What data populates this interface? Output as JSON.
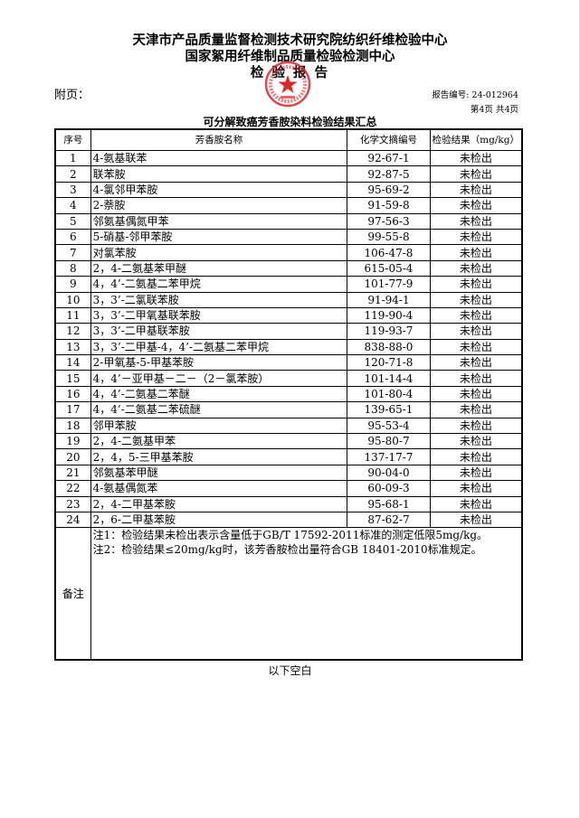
{
  "header": {
    "org_line1": "天津市产品质量监督检测技术研究院纺织纤维检验中心",
    "org_line2": "国家絮用纤维制品质量检验检测中心",
    "doc_title": "检 验 报 告",
    "attachment_label": "附页：",
    "report_no": "报告编号: 24-012964",
    "page_info": "第4页 共4页",
    "seal_color": "#e0242a"
  },
  "table": {
    "title": "可分解致癌芳香胺染料检验结果汇总",
    "columns": [
      "序号",
      "芳香胺名称",
      "化学文摘编号",
      "检验结果（mg/kg）"
    ],
    "rows": [
      [
        "1",
        "4-氨基联苯",
        "92-67-1",
        "未检出"
      ],
      [
        "2",
        "联苯胺",
        "92-87-5",
        "未检出"
      ],
      [
        "3",
        "4-氯邻甲苯胺",
        "95-69-2",
        "未检出"
      ],
      [
        "4",
        "2-萘胺",
        "91-59-8",
        "未检出"
      ],
      [
        "5",
        "邻氨基偶氮甲苯",
        "97-56-3",
        "未检出"
      ],
      [
        "6",
        "5-硝基-邻甲苯胺",
        "99-55-8",
        "未检出"
      ],
      [
        "7",
        "对氯苯胺",
        "106-47-8",
        "未检出"
      ],
      [
        "8",
        "2，4-二氨基苯甲醚",
        "615-05-4",
        "未检出"
      ],
      [
        "9",
        "4，4’-二氨基二苯甲烷",
        "101-77-9",
        "未检出"
      ],
      [
        "10",
        "3，3’-二氯联苯胺",
        "91-94-1",
        "未检出"
      ],
      [
        "11",
        "3，3’-二甲氧基联苯胺",
        "119-90-4",
        "未检出"
      ],
      [
        "12",
        "3，3’-二甲基联苯胺",
        "119-93-7",
        "未检出"
      ],
      [
        "13",
        "3，3’-二甲基-4，4’-二氨基二苯甲烷",
        "838-88-0",
        "未检出"
      ],
      [
        "14",
        "2-甲氧基-5-甲基苯胺",
        "120-71-8",
        "未检出"
      ],
      [
        "15",
        "4，4’－亚甲基－二－（2－氯苯胺）",
        "101-14-4",
        "未检出"
      ],
      [
        "16",
        "4，4’-二氨基二苯醚",
        "101-80-4",
        "未检出"
      ],
      [
        "17",
        "4，4’-二氨基二苯硫醚",
        "139-65-1",
        "未检出"
      ],
      [
        "18",
        "邻甲苯胺",
        "95-53-4",
        "未检出"
      ],
      [
        "19",
        "2，4-二氨基甲苯",
        "95-80-7",
        "未检出"
      ],
      [
        "20",
        "2，4，5-三甲基苯胺",
        "137-17-7",
        "未检出"
      ],
      [
        "21",
        "邻氨基苯甲醚",
        "90-04-0",
        "未检出"
      ],
      [
        "22",
        "4-氨基偶氮苯",
        "60-09-3",
        "未检出"
      ],
      [
        "23",
        "2，4-二甲基苯胺",
        "95-68-1",
        "未检出"
      ],
      [
        "24",
        "2，6-二甲基苯胺",
        "87-62-7",
        "未检出"
      ]
    ],
    "remarks_label": "备注",
    "notes": [
      "注1：检验结果未检出表示含量低于GB/T 17592-2011标准的测定低限5mg/kg。",
      "注2：检验结果≤20mg/kg时，该芳香胺检出量符合GB 18401-2010标准规定。"
    ]
  },
  "footer": {
    "blank_text": "以下空白"
  }
}
